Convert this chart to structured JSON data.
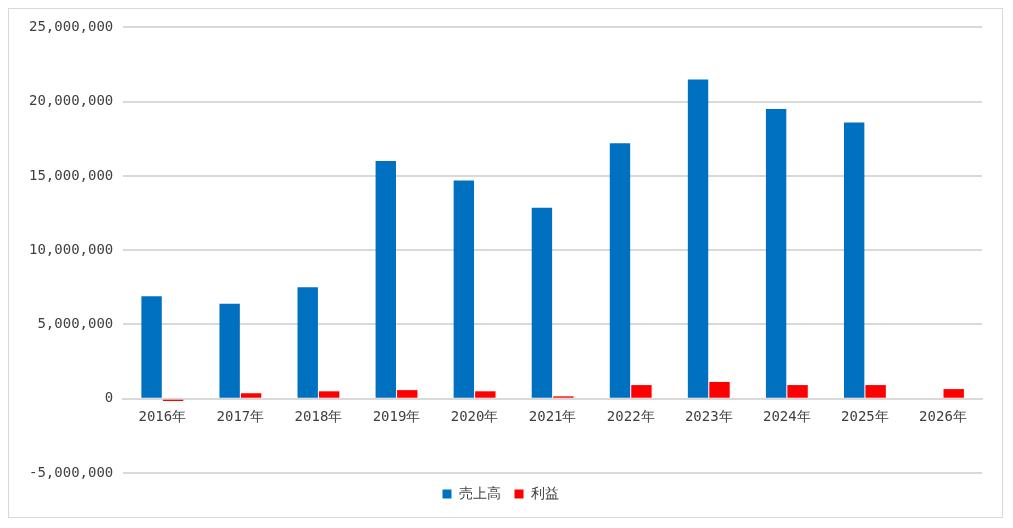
{
  "chart_data": {
    "type": "bar",
    "categories": [
      "2016年",
      "2017年",
      "2018年",
      "2019年",
      "2020年",
      "2021年",
      "2022年",
      "2023年",
      "2024年",
      "2025年",
      "2026年"
    ],
    "series": [
      {
        "name": "売上高",
        "color": "#0070c0",
        "values": [
          6900000,
          6400000,
          7500000,
          16000000,
          14700000,
          12850000,
          17200000,
          21500000,
          19500000,
          18600000,
          null
        ]
      },
      {
        "name": "利益",
        "color": "#ff0000",
        "values": [
          -150000,
          370000,
          500000,
          580000,
          500000,
          160000,
          920000,
          1130000,
          920000,
          920000,
          650000
        ]
      }
    ],
    "ylim": [
      -5000000,
      25000000
    ],
    "yticks": [
      {
        "value": -5000000,
        "label": "-5,000,000"
      },
      {
        "value": 0,
        "label": "0"
      },
      {
        "value": 5000000,
        "label": "5,000,000"
      },
      {
        "value": 10000000,
        "label": "10,000,000"
      },
      {
        "value": 15000000,
        "label": "15,000,000"
      },
      {
        "value": 20000000,
        "label": "20,000,000"
      },
      {
        "value": 25000000,
        "label": "25,000,000"
      }
    ],
    "grid": "y",
    "legend": "bottom"
  }
}
